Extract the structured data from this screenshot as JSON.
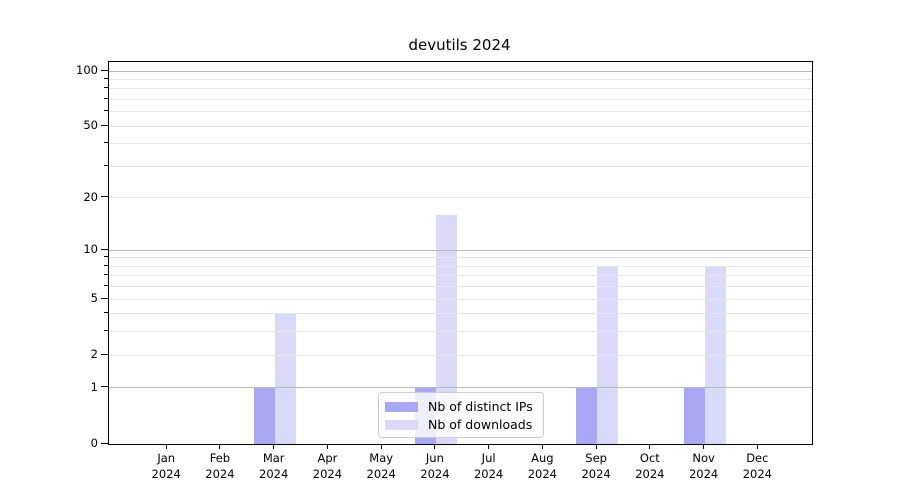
{
  "title": "devutils 2024",
  "colors": {
    "distinct_ips": "#a8a8f4",
    "downloads": "#d9d9f9",
    "grid_major": "#b9b9b9",
    "grid_minor": "#e7e7e7",
    "spine": "#000000",
    "legend_border": "#cccccc",
    "background": "#ffffff"
  },
  "legend": {
    "items": [
      {
        "label": "Nb of distinct IPs"
      },
      {
        "label": "Nb of downloads"
      }
    ]
  },
  "chart_data": {
    "type": "bar",
    "title": "devutils 2024",
    "categories": [
      "Jan 2024",
      "Feb 2024",
      "Mar 2024",
      "Apr 2024",
      "May 2024",
      "Jun 2024",
      "Jul 2024",
      "Aug 2024",
      "Sep 2024",
      "Oct 2024",
      "Nov 2024",
      "Dec 2024"
    ],
    "series": [
      {
        "name": "Nb of distinct IPs",
        "color": "#a8a8f4",
        "values": [
          0,
          0,
          1,
          0,
          0,
          1,
          0,
          0,
          1,
          0,
          1,
          0
        ]
      },
      {
        "name": "Nb of downloads",
        "color": "#d9d9f9",
        "values": [
          0,
          0,
          4,
          0,
          0,
          16,
          0,
          0,
          8,
          0,
          8,
          0
        ]
      }
    ],
    "xlabel": "",
    "ylabel": "",
    "yscale": "log1p",
    "y_ticks": [
      0,
      1,
      2,
      5,
      10,
      20,
      50,
      100
    ],
    "y_major_grid": [
      1,
      10,
      100
    ],
    "y_minor_grid": [
      2,
      3,
      4,
      5,
      6,
      7,
      8,
      9,
      20,
      30,
      40,
      50,
      60,
      70,
      80,
      90
    ],
    "ylim": [
      0,
      110
    ],
    "grid": true,
    "legend_position": "lower center"
  }
}
